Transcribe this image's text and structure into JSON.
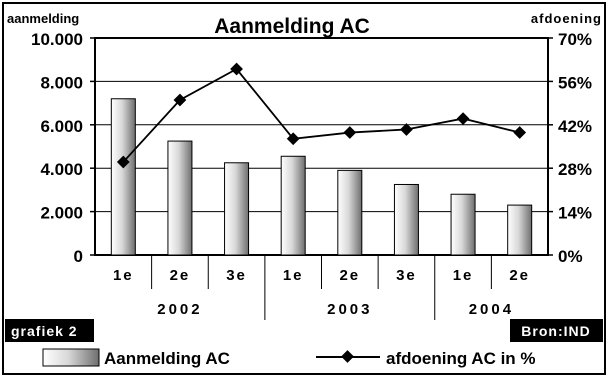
{
  "chart_data": {
    "type": "bar",
    "title": "Aanmelding AC",
    "ylabel_left": "aanmelding",
    "ylabel_right": "afdoening",
    "categories": [
      "1e",
      "2e",
      "3e",
      "1e",
      "2e",
      "3e",
      "1e",
      "2e"
    ],
    "year_groups": [
      {
        "label": "2002",
        "count": 3
      },
      {
        "label": "2003",
        "count": 3
      },
      {
        "label": "2004",
        "count": 2
      }
    ],
    "series": [
      {
        "name": "Aanmelding AC",
        "type": "bar",
        "axis": "left",
        "values": [
          7200,
          5250,
          4250,
          4550,
          3900,
          3250,
          2800,
          2300
        ]
      },
      {
        "name": "afdoening AC in %",
        "type": "line",
        "axis": "right",
        "values": [
          30,
          50,
          60,
          37.5,
          39.5,
          40.5,
          44,
          39.5
        ]
      }
    ],
    "ylim_left": [
      0,
      10000
    ],
    "ylim_right": [
      0,
      70
    ],
    "yticks_left": [
      "0",
      "2.000",
      "4.000",
      "6.000",
      "8.000",
      "10.000"
    ],
    "yticks_right": [
      "0%",
      "14%",
      "28%",
      "42%",
      "56%",
      "70%"
    ],
    "grid": true,
    "legend_position": "bottom"
  },
  "footer": {
    "left_tag": "grafiek 2",
    "right_tag": "Bron:IND"
  },
  "colors": {
    "frame": "#000000",
    "tag_background": "#000000",
    "tag_text": "#ffffff",
    "bar_light": "#ffffff",
    "bar_dark": "#7a7a7a",
    "line": "#000000"
  }
}
